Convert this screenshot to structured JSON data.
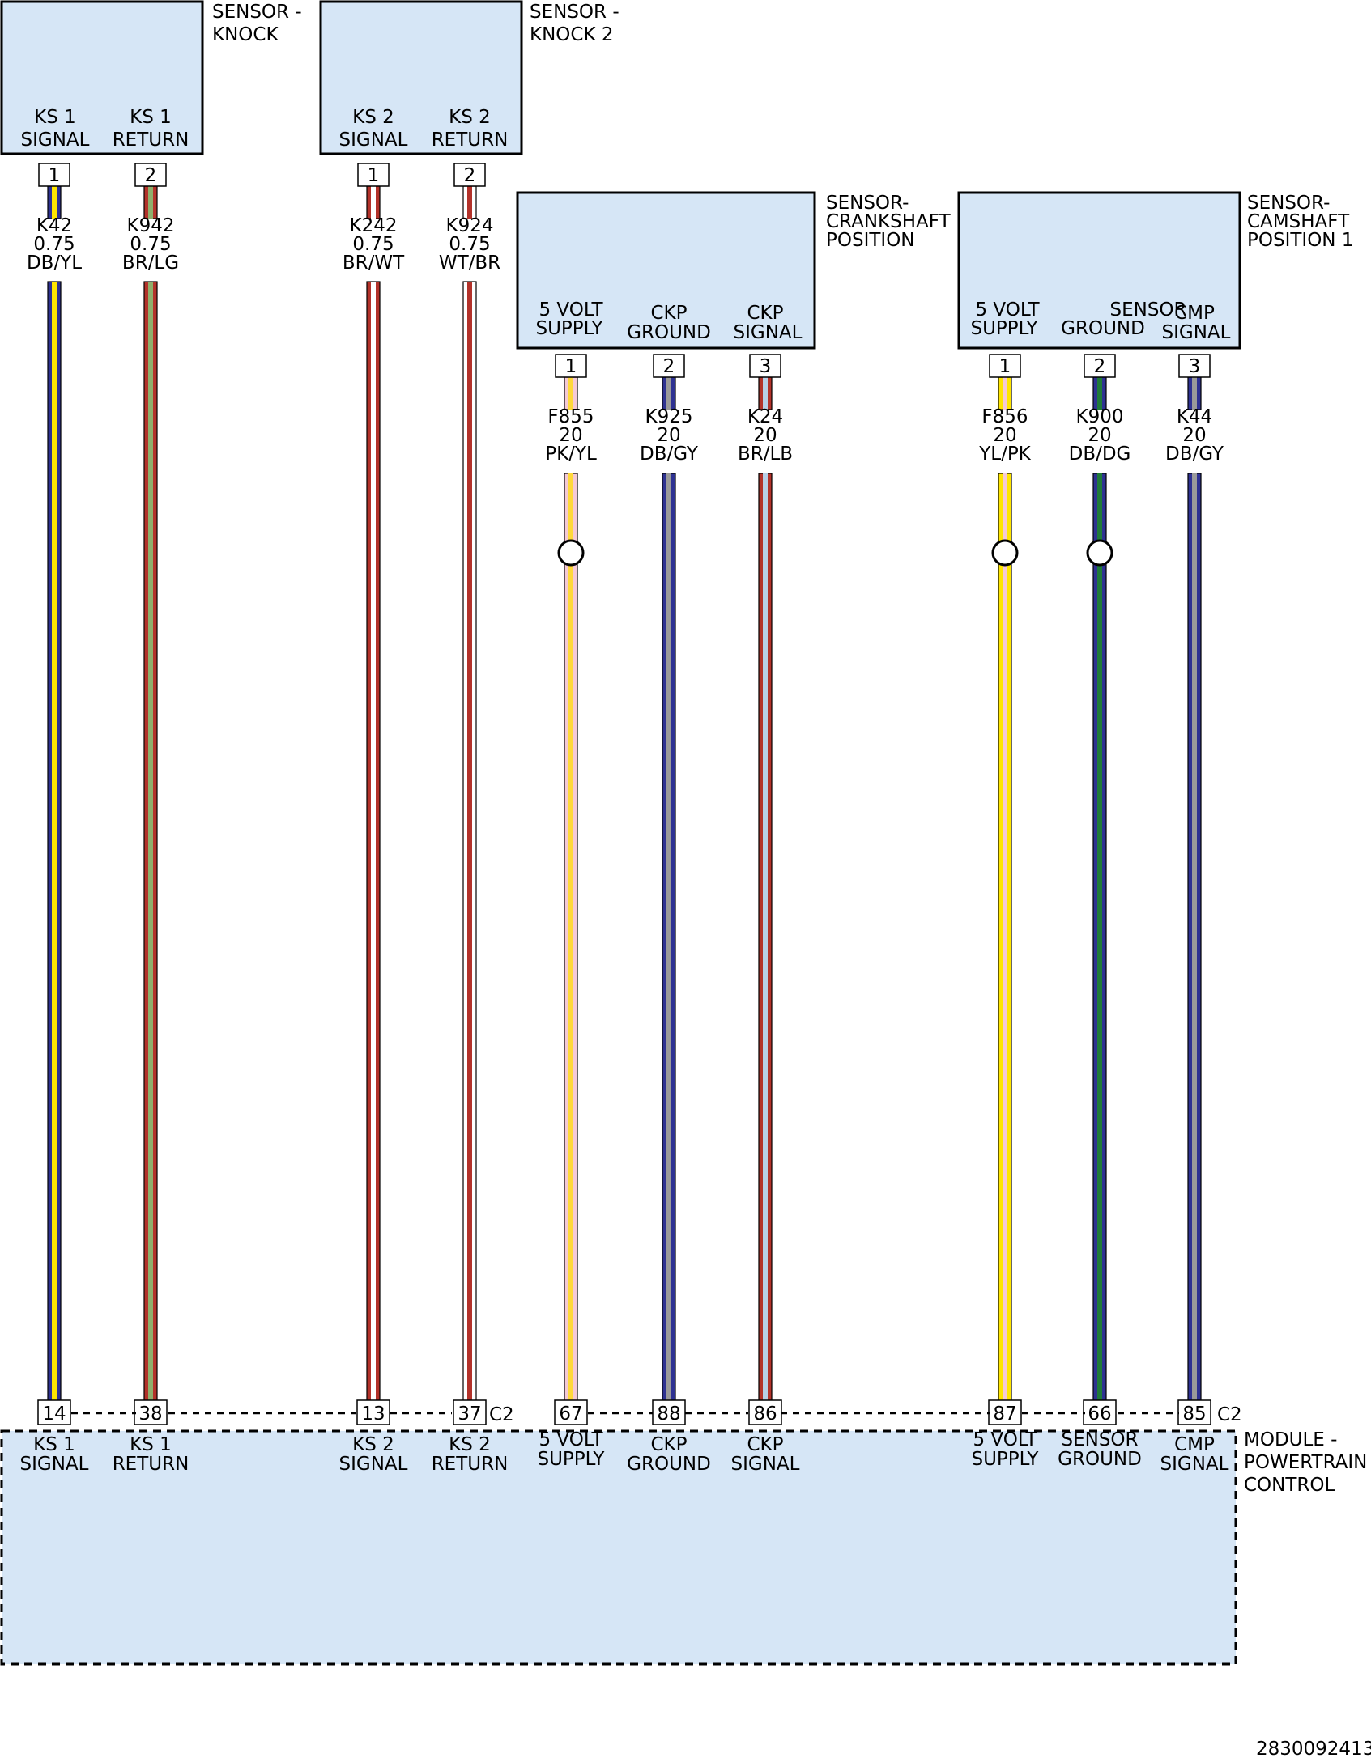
{
  "components": {
    "knock1": {
      "name_l1": "SENSOR -",
      "name_l2": "KNOCK",
      "pin1_l1": "KS 1",
      "pin1_l2": "SIGNAL",
      "pin2_l1": "KS 1",
      "pin2_l2": "RETURN"
    },
    "knock2": {
      "name_l1": "SENSOR -",
      "name_l2": "KNOCK 2",
      "pin1_l1": "KS 2",
      "pin1_l2": "SIGNAL",
      "pin2_l1": "KS 2",
      "pin2_l2": "RETURN"
    },
    "ckp": {
      "name_l1": "SENSOR-",
      "name_l2": "CRANKSHAFT",
      "name_l3": "POSITION",
      "pin1_l1": "5 VOLT",
      "pin1_l2": "SUPPLY",
      "pin2_l1": "CKP",
      "pin2_l2": "GROUND",
      "pin3_l1": "CKP",
      "pin3_l2": "SIGNAL"
    },
    "cmp": {
      "name_l1": "SENSOR-",
      "name_l2": "CAMSHAFT",
      "name_l3": "POSITION 1",
      "pin1_l1": "5 VOLT",
      "pin1_l2": "SUPPLY",
      "pin2_l1": "SENSOR",
      "pin2_l2": "GROUND",
      "pin3_l1": "CMP",
      "pin3_l2": "SIGNAL"
    },
    "pcm": {
      "name_l1": "MODULE -",
      "name_l2": "POWERTRAIN",
      "name_l3": "CONTROL",
      "connector_left": "C2",
      "connector_right": "C2"
    }
  },
  "wires": [
    {
      "circuit": "K42",
      "gauge": "0.75",
      "color_code": "DB/YL",
      "from_pin": "1",
      "pcm_pin": "14",
      "pcm_l1": "KS 1",
      "pcm_l2": "SIGNAL",
      "colors": [
        "#2e3192",
        "#ffe600"
      ]
    },
    {
      "circuit": "K942",
      "gauge": "0.75",
      "color_code": "BR/LG",
      "from_pin": "2",
      "pcm_pin": "38",
      "pcm_l1": "KS 1",
      "pcm_l2": "RETURN",
      "colors": [
        "#b3322a",
        "#8fae6b"
      ]
    },
    {
      "circuit": "K242",
      "gauge": "0.75",
      "color_code": "BR/WT",
      "from_pin": "1",
      "pcm_pin": "13",
      "pcm_l1": "KS 2",
      "pcm_l2": "SIGNAL",
      "colors": [
        "#b3322a",
        "#ffffff"
      ]
    },
    {
      "circuit": "K924",
      "gauge": "0.75",
      "color_code": "WT/BR",
      "from_pin": "2",
      "pcm_pin": "37",
      "pcm_l1": "KS 2",
      "pcm_l2": "RETURN",
      "colors": [
        "#ffffff",
        "#b3322a"
      ]
    },
    {
      "circuit": "F855",
      "gauge": "20",
      "color_code": "PK/YL",
      "from_pin": "1",
      "pcm_pin": "67",
      "pcm_l1": "5 VOLT",
      "pcm_l2": "SUPPLY",
      "colors": [
        "#f4c9d6",
        "#ffd83a"
      ]
    },
    {
      "circuit": "K925",
      "gauge": "20",
      "color_code": "DB/GY",
      "from_pin": "2",
      "pcm_pin": "88",
      "pcm_l1": "CKP",
      "pcm_l2": "GROUND",
      "colors": [
        "#2e3192",
        "#9a9a9a"
      ]
    },
    {
      "circuit": "K24",
      "gauge": "20",
      "color_code": "BR/LB",
      "from_pin": "3",
      "pcm_pin": "86",
      "pcm_l1": "CKP",
      "pcm_l2": "SIGNAL",
      "colors": [
        "#b3322a",
        "#b8cfe6"
      ]
    },
    {
      "circuit": "F856",
      "gauge": "20",
      "color_code": "YL/PK",
      "from_pin": "1",
      "pcm_pin": "87",
      "pcm_l1": "5 VOLT",
      "pcm_l2": "SUPPLY",
      "colors": [
        "#ffe600",
        "#f4c9d6"
      ]
    },
    {
      "circuit": "K900",
      "gauge": "20",
      "color_code": "DB/DG",
      "from_pin": "2",
      "pcm_pin": "66",
      "pcm_l1": "SENSOR",
      "pcm_l2": "GROUND",
      "colors": [
        "#2e3192",
        "#1f7a3a"
      ]
    },
    {
      "circuit": "K44",
      "gauge": "20",
      "color_code": "DB/GY",
      "from_pin": "3",
      "pcm_pin": "85",
      "pcm_l1": "CMP",
      "pcm_l2": "SIGNAL",
      "colors": [
        "#2e3192",
        "#9a9a9a"
      ]
    }
  ],
  "figure_id": "2830092413."
}
